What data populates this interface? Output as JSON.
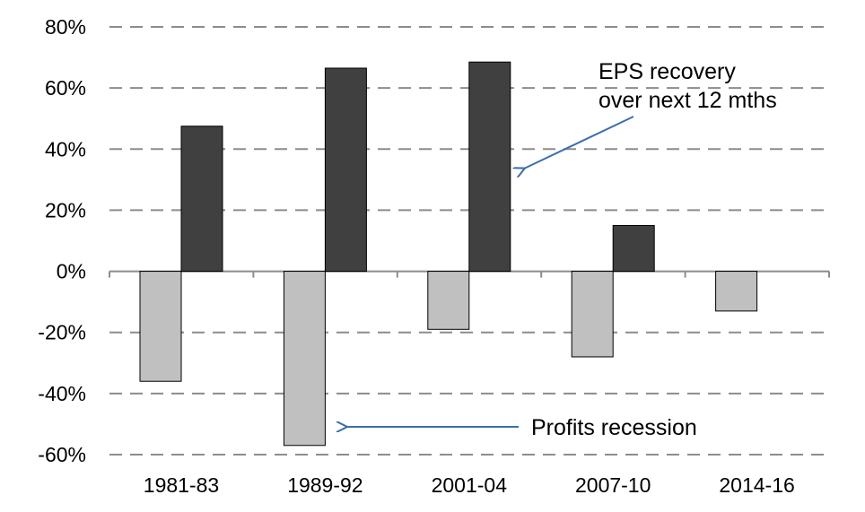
{
  "chart_data": {
    "type": "bar",
    "categories": [
      "1981-83",
      "1989-92",
      "2001-04",
      "2007-10",
      "2014-16"
    ],
    "series": [
      {
        "name": "Profits recession",
        "values": [
          -36,
          -57,
          -19,
          -28,
          -13
        ],
        "color": "#c0c0c0"
      },
      {
        "name": "EPS recovery over next 12 mths",
        "values": [
          47.5,
          66.5,
          68.5,
          15,
          null
        ],
        "color": "#404040"
      }
    ],
    "ylim": [
      -60,
      80
    ],
    "yticks": [
      80,
      60,
      40,
      20,
      0,
      -20,
      -40,
      -60
    ],
    "ytick_labels": [
      "80%",
      "60%",
      "40%",
      "20%",
      "0%",
      "-20%",
      "-40%",
      "-60%"
    ],
    "grid": true,
    "annotations": {
      "eps_line1": "EPS recovery",
      "eps_line2": "over next 12 mths",
      "profits": "Profits recession"
    },
    "arrow_color": "#3a6fa8",
    "grid_color": "#8c8c8c"
  }
}
